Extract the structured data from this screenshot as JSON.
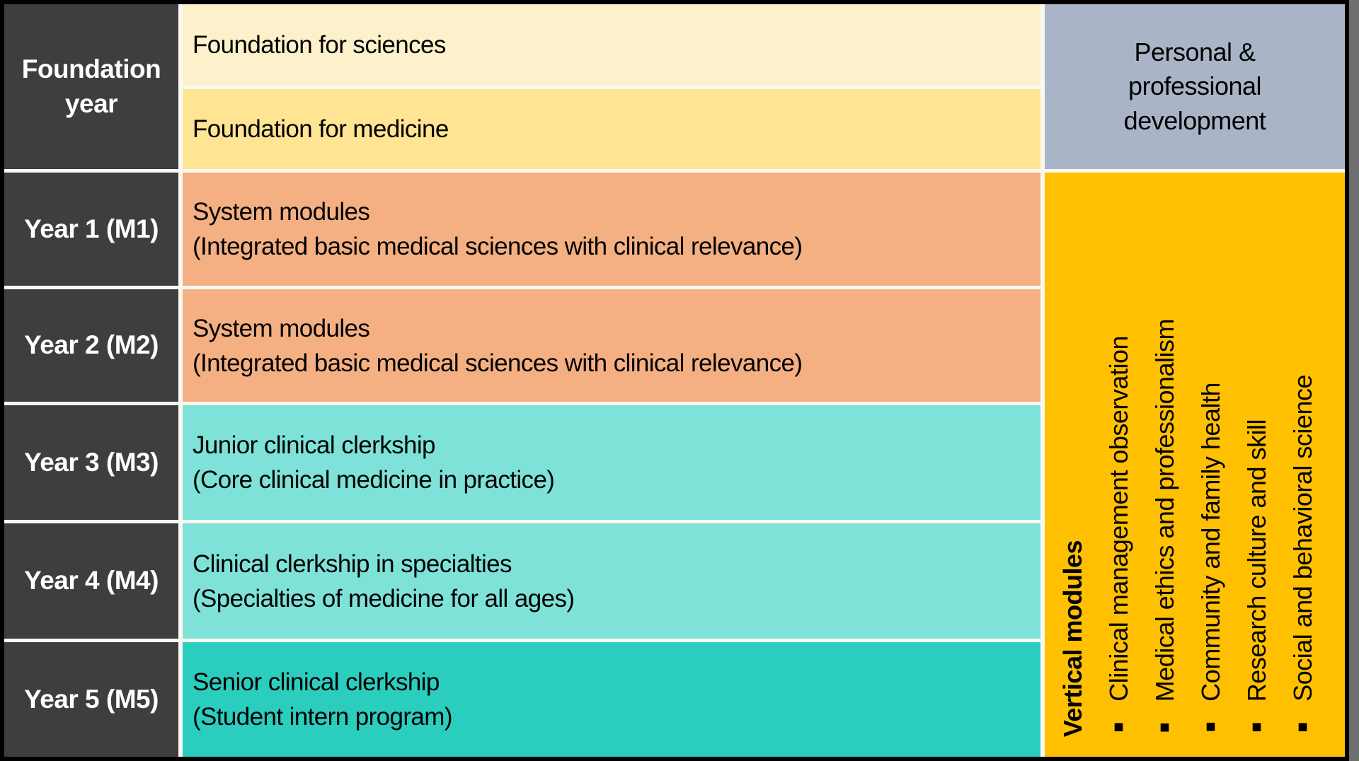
{
  "colors": {
    "year_column_bg": "#3E3E3E",
    "foundation_sciences_bg": "#FDF1CC",
    "foundation_medicine_bg": "#FFE493",
    "system_modules_bg": "#F4B083",
    "clinical_clerkship_bg": "#7FE2D8",
    "senior_clerkship_bg": "#2BCDBE",
    "personal_development_bg": "#A9B5C7",
    "vertical_modules_bg": "#FFC002",
    "table_border": "#000000",
    "text_dark": "#000000",
    "text_light": "#FFFFFF"
  },
  "curriculum": {
    "foundation": {
      "label": "Foundation year",
      "courses": [
        "Foundation for sciences",
        "Foundation for medicine"
      ]
    },
    "years": [
      {
        "label": "Year 1 (M1)",
        "title": "System modules",
        "subtitle": "(Integrated basic medical sciences with clinical relevance)"
      },
      {
        "label": "Year 2 (M2)",
        "title": "System modules",
        "subtitle": "(Integrated basic medical sciences with clinical relevance)"
      },
      {
        "label": "Year 3 (M3)",
        "title": "Junior clinical clerkship",
        "subtitle": "(Core clinical medicine in practice)"
      },
      {
        "label": "Year 4 (M4)",
        "title": "Clinical clerkship in specialties",
        "subtitle": "(Specialties of medicine for all ages)"
      },
      {
        "label": "Year 5 (M5)",
        "title": "Senior clinical clerkship",
        "subtitle": "(Student intern program)"
      }
    ],
    "personal_professional_development": "Personal & professional development",
    "vertical_modules": {
      "header": "Vertical modules",
      "bullet": "■",
      "items": [
        "Clinical management observation",
        "Medical ethics and professionalism",
        "Community and family health",
        "Research culture and skill",
        "Social and behavioral science"
      ]
    }
  }
}
